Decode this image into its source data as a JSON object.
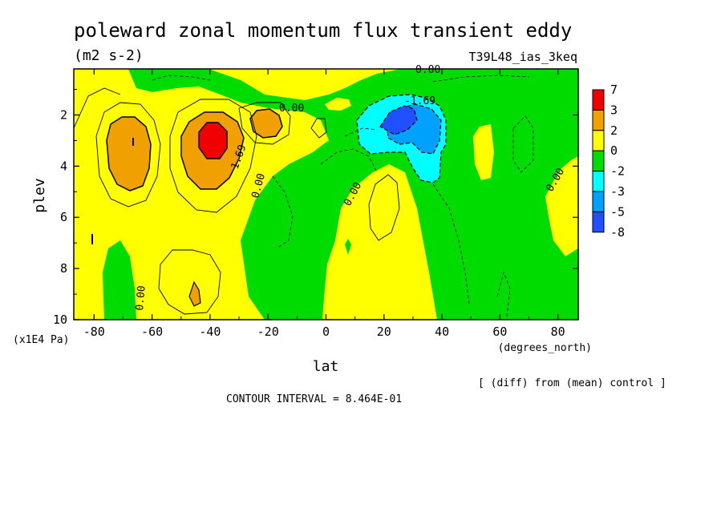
{
  "chart_data": {
    "type": "heatmap",
    "title": "poleward zonal momentum flux transient eddy",
    "units": "(m2 s-2)",
    "run_label": "T39L48_ias_3keq",
    "xlabel": "lat",
    "x_units_label": "(degrees_north)",
    "ylabel": "plev",
    "y_units_label": "(x1E4 Pa)",
    "x_ticks": [
      "-80",
      "-60",
      "-40",
      "-20",
      "0",
      "20",
      "40",
      "60",
      "80"
    ],
    "x_tick_values": [
      -80,
      -60,
      -40,
      -20,
      0,
      20,
      40,
      60,
      80
    ],
    "y_ticks": [
      "2",
      "4",
      "6",
      "8",
      "10"
    ],
    "y_tick_values": [
      2,
      4,
      6,
      8,
      10
    ],
    "xlim": [
      -87,
      87
    ],
    "ylim": [
      0.2,
      10
    ],
    "y_inverted": true,
    "contour_labels": [
      "0.00",
      "0.00",
      "1.69",
      "0.00",
      "0.00",
      "0.00",
      "-1.69",
      "0.00",
      "0.00"
    ],
    "colorbar": {
      "labels": [
        "7",
        "3",
        "2",
        "0",
        "-2",
        "-3",
        "-5",
        "-8"
      ],
      "colors": [
        "#f00000",
        "#f0a000",
        "#ffff00",
        "#00dc00",
        "#00ffff",
        "#00a0ff",
        "#2050ff"
      ]
    },
    "diff_note": "[ (diff) from (mean) control ]",
    "contour_interval": "CONTOUR INTERVAL = 8.464E-01",
    "features": [
      {
        "lat": -68,
        "plev": 3.0,
        "value": 2.6
      },
      {
        "lat": -40,
        "plev": 2.8,
        "value": 5.0
      },
      {
        "lat": -22,
        "plev": 2.3,
        "value": 2.3
      },
      {
        "lat": 25,
        "plev": 2.1,
        "value": -6.5
      },
      {
        "lat": 35,
        "plev": 3.5,
        "value": -3.0
      },
      {
        "lat": 60,
        "plev": 3.3,
        "value": 0.4
      }
    ]
  }
}
